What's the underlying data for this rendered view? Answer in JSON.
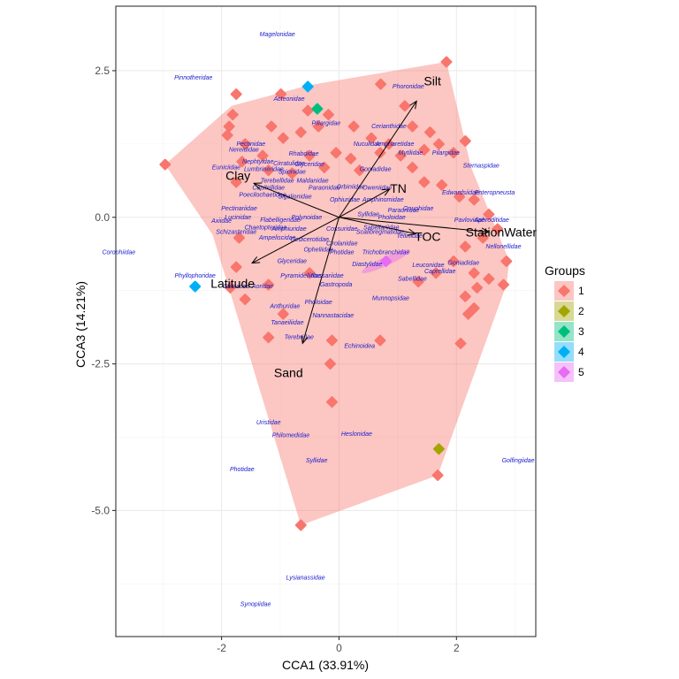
{
  "chart_data": {
    "type": "scatter",
    "xlabel": "CCA1 (33.91%)",
    "ylabel": "CCA3 (14.21%)",
    "xlim": [
      -3.8,
      3.35
    ],
    "ylim": [
      -7.15,
      3.6
    ],
    "x_ticks": [
      -2,
      0,
      2
    ],
    "x_tick_labels": [
      "-2",
      "0",
      "2"
    ],
    "y_ticks": [
      2.5,
      0,
      -2.5,
      -5
    ],
    "y_tick_labels": [
      "2.5",
      "0.0",
      "-2.5",
      "-5.0"
    ],
    "grid": true,
    "legend": {
      "title": "Groups",
      "position": "right",
      "entries": [
        {
          "label": "1",
          "color": "#F8766D"
        },
        {
          "label": "2",
          "color": "#A3A500"
        },
        {
          "label": "3",
          "color": "#00BF7D"
        },
        {
          "label": "4",
          "color": "#00B0F6"
        },
        {
          "label": "5",
          "color": "#E76BF3"
        }
      ]
    },
    "hull": {
      "group": "1",
      "color": "#F8766D",
      "points": [
        [
          1.83,
          2.65
        ],
        [
          2.25,
          0.85
        ],
        [
          2.9,
          -0.75
        ],
        [
          2.85,
          -1.15
        ],
        [
          1.68,
          -4.4
        ],
        [
          -0.65,
          -5.25
        ],
        [
          -2.15,
          -0.3
        ],
        [
          -2.96,
          0.9
        ],
        [
          -1.83,
          1.9
        ],
        [
          -0.52,
          2.25
        ]
      ]
    },
    "sites": [
      {
        "group": "1",
        "x": 1.83,
        "y": 2.65
      },
      {
        "group": "1",
        "x": 0.71,
        "y": 2.27
      },
      {
        "group": "1",
        "x": -0.53,
        "y": 1.82
      },
      {
        "group": "1",
        "x": -1.75,
        "y": 2.1
      },
      {
        "group": "1",
        "x": -0.99,
        "y": 2.1
      },
      {
        "group": "1",
        "x": -1.81,
        "y": 1.75
      },
      {
        "group": "1",
        "x": -1.87,
        "y": 1.55
      },
      {
        "group": "1",
        "x": -1.9,
        "y": 1.4
      },
      {
        "group": "1",
        "x": -2.96,
        "y": 0.9
      },
      {
        "group": "1",
        "x": -1.6,
        "y": 1.25
      },
      {
        "group": "1",
        "x": -1.15,
        "y": 1.55
      },
      {
        "group": "1",
        "x": -0.95,
        "y": 1.35
      },
      {
        "group": "1",
        "x": -0.65,
        "y": 1.45
      },
      {
        "group": "1",
        "x": -0.35,
        "y": 1.55
      },
      {
        "group": "1",
        "x": -0.18,
        "y": 1.75
      },
      {
        "group": "1",
        "x": 0.25,
        "y": 1.55
      },
      {
        "group": "1",
        "x": 0.55,
        "y": 1.35
      },
      {
        "group": "1",
        "x": 0.85,
        "y": 1.25
      },
      {
        "group": "1",
        "x": 0.7,
        "y": 1.1
      },
      {
        "group": "1",
        "x": 1.12,
        "y": 1.9
      },
      {
        "group": "1",
        "x": 1.25,
        "y": 1.55
      },
      {
        "group": "1",
        "x": 1.55,
        "y": 1.45
      },
      {
        "group": "1",
        "x": 1.7,
        "y": 1.25
      },
      {
        "group": "1",
        "x": 1.95,
        "y": 1.1
      },
      {
        "group": "1",
        "x": 2.15,
        "y": 1.3
      },
      {
        "group": "1",
        "x": 1.45,
        "y": 1.15
      },
      {
        "group": "1",
        "x": 1.05,
        "y": 1.05
      },
      {
        "group": "1",
        "x": 0.2,
        "y": 1.0
      },
      {
        "group": "1",
        "x": -0.05,
        "y": 1.1
      },
      {
        "group": "1",
        "x": -0.5,
        "y": 1.05
      },
      {
        "group": "1",
        "x": -1.3,
        "y": 1.05
      },
      {
        "group": "1",
        "x": -1.65,
        "y": 0.95
      },
      {
        "group": "1",
        "x": -1.75,
        "y": 0.6
      },
      {
        "group": "1",
        "x": -1.2,
        "y": 0.8
      },
      {
        "group": "1",
        "x": -0.8,
        "y": 0.75
      },
      {
        "group": "1",
        "x": -0.25,
        "y": 0.85
      },
      {
        "group": "1",
        "x": 0.35,
        "y": 0.8
      },
      {
        "group": "1",
        "x": 1.25,
        "y": 0.85
      },
      {
        "group": "1",
        "x": 1.45,
        "y": 0.6
      },
      {
        "group": "1",
        "x": 1.75,
        "y": 0.55
      },
      {
        "group": "1",
        "x": 2.05,
        "y": 0.35
      },
      {
        "group": "1",
        "x": 2.3,
        "y": 0.3
      },
      {
        "group": "1",
        "x": 2.55,
        "y": 0.05
      },
      {
        "group": "1",
        "x": 2.7,
        "y": -0.2
      },
      {
        "group": "1",
        "x": 2.45,
        "y": -0.35
      },
      {
        "group": "1",
        "x": 2.15,
        "y": -0.5
      },
      {
        "group": "1",
        "x": 1.95,
        "y": -0.75
      },
      {
        "group": "1",
        "x": 2.3,
        "y": -0.95
      },
      {
        "group": "1",
        "x": 2.85,
        "y": -0.75
      },
      {
        "group": "1",
        "x": 2.8,
        "y": -1.15
      },
      {
        "group": "1",
        "x": 2.55,
        "y": -1.05
      },
      {
        "group": "1",
        "x": 2.35,
        "y": -1.2
      },
      {
        "group": "1",
        "x": 2.15,
        "y": -1.35
      },
      {
        "group": "1",
        "x": 2.3,
        "y": -1.55
      },
      {
        "group": "1",
        "x": 2.2,
        "y": -1.65
      },
      {
        "group": "1",
        "x": 1.65,
        "y": -0.95
      },
      {
        "group": "1",
        "x": 1.35,
        "y": -1.1
      },
      {
        "group": "1",
        "x": 2.07,
        "y": -2.15
      },
      {
        "group": "1",
        "x": -1.7,
        "y": -0.35
      },
      {
        "group": "1",
        "x": -1.75,
        "y": -0.85
      },
      {
        "group": "1",
        "x": -1.85,
        "y": -1.2
      },
      {
        "group": "1",
        "x": -1.6,
        "y": -1.4
      },
      {
        "group": "1",
        "x": -1.2,
        "y": -1.15
      },
      {
        "group": "1",
        "x": -0.95,
        "y": -1.65
      },
      {
        "group": "1",
        "x": -1.2,
        "y": -2.05
      },
      {
        "group": "1",
        "x": -0.5,
        "y": -0.95
      },
      {
        "group": "1",
        "x": 0.7,
        "y": -2.1
      },
      {
        "group": "1",
        "x": -0.15,
        "y": -2.5
      },
      {
        "group": "1",
        "x": -0.12,
        "y": -2.1
      },
      {
        "group": "1",
        "x": -0.12,
        "y": -3.15
      },
      {
        "group": "1",
        "x": -0.65,
        "y": -5.25
      },
      {
        "group": "1",
        "x": 1.68,
        "y": -4.4
      }
    ],
    "special_sites": [
      {
        "group": "2",
        "x": 1.7,
        "y": -3.95
      },
      {
        "group": "3",
        "x": -0.37,
        "y": 1.85
      },
      {
        "group": "4",
        "x": -0.53,
        "y": 2.23
      },
      {
        "group": "4",
        "x": -2.45,
        "y": -1.18
      },
      {
        "group": "5",
        "x": 0.8,
        "y": -0.75
      }
    ],
    "env_vectors": [
      {
        "label": "Silt",
        "x": 1.32,
        "y": 1.98
      },
      {
        "label": "Clay",
        "x": -1.45,
        "y": 0.58
      },
      {
        "label": "TN",
        "x": 0.86,
        "y": 0.48
      },
      {
        "label": "TOC",
        "x": 1.3,
        "y": -0.28
      },
      {
        "label": "StationWater",
        "x": 2.55,
        "y": -0.25
      },
      {
        "label": "Latitude",
        "x": -1.48,
        "y": -0.78
      },
      {
        "label": "Sand",
        "x": -0.62,
        "y": -2.15
      }
    ],
    "taxa": [
      {
        "label": "Magelonidae",
        "x": -1.05,
        "y": 3.12
      },
      {
        "label": "Pinnotheridae",
        "x": -2.48,
        "y": 2.38
      },
      {
        "label": "Acteonidae",
        "x": -0.85,
        "y": 2.02
      },
      {
        "label": "Phoronidae",
        "x": 1.18,
        "y": 2.23
      },
      {
        "label": "Piliargidae",
        "x": -0.22,
        "y": 1.6
      },
      {
        "label": "Cerianthidae",
        "x": 0.85,
        "y": 1.55
      },
      {
        "label": "Pectinidae",
        "x": -1.5,
        "y": 1.25
      },
      {
        "label": "Nereididae",
        "x": -1.62,
        "y": 1.15
      },
      {
        "label": "Nuculidae",
        "x": 0.48,
        "y": 1.25
      },
      {
        "label": "Ampharetidae",
        "x": 0.95,
        "y": 1.25
      },
      {
        "label": "Mytilidae",
        "x": 1.22,
        "y": 1.1
      },
      {
        "label": "Pilargidae",
        "x": 1.82,
        "y": 1.1
      },
      {
        "label": "Rhabdidae",
        "x": -0.6,
        "y": 1.08
      },
      {
        "label": "Nephtyidae",
        "x": -1.38,
        "y": 0.95
      },
      {
        "label": "Cirratulidae",
        "x": -0.85,
        "y": 0.92
      },
      {
        "label": "Glyceridae",
        "x": -0.5,
        "y": 0.9
      },
      {
        "label": "Sternaspidae",
        "x": 2.42,
        "y": 0.88
      },
      {
        "label": "Euniciidae",
        "x": -1.92,
        "y": 0.85
      },
      {
        "label": "Lumbrineridae",
        "x": -1.28,
        "y": 0.82
      },
      {
        "label": "Spionidae",
        "x": -0.8,
        "y": 0.77
      },
      {
        "label": "Goniadidae",
        "x": 0.62,
        "y": 0.82
      },
      {
        "label": "Terebellidae",
        "x": -1.05,
        "y": 0.62
      },
      {
        "label": "Maldanidae",
        "x": -0.45,
        "y": 0.62
      },
      {
        "label": "Capitellidae",
        "x": -1.2,
        "y": 0.5
      },
      {
        "label": "Paraonidae",
        "x": -0.25,
        "y": 0.5
      },
      {
        "label": "Orbiniidae",
        "x": 0.2,
        "y": 0.52
      },
      {
        "label": "Oweniidae",
        "x": 0.65,
        "y": 0.5
      },
      {
        "label": "Edwardsiidae",
        "x": 2.07,
        "y": 0.42
      },
      {
        "label": "Enteropneusta",
        "x": 2.65,
        "y": 0.42
      },
      {
        "label": "Poecilochaetidae",
        "x": -1.3,
        "y": 0.38
      },
      {
        "label": "Sigalionidae",
        "x": -0.75,
        "y": 0.35
      },
      {
        "label": "Ophiuridae",
        "x": 0.1,
        "y": 0.3
      },
      {
        "label": "Amphinomidae",
        "x": 0.75,
        "y": 0.3
      },
      {
        "label": "Pectinariidae",
        "x": -1.7,
        "y": 0.15
      },
      {
        "label": "Paraonidae",
        "x": 1.1,
        "y": 0.12
      },
      {
        "label": "Onuphidae",
        "x": 1.35,
        "y": 0.15
      },
      {
        "label": "Lucinidae",
        "x": -1.72,
        "y": 0.0
      },
      {
        "label": "Axiidae",
        "x": -2.0,
        "y": -0.06
      },
      {
        "label": "Flabelligeridae",
        "x": -1.0,
        "y": -0.05
      },
      {
        "label": "Polynoidae",
        "x": -0.55,
        "y": 0.0
      },
      {
        "label": "Syllidae",
        "x": 0.5,
        "y": 0.05
      },
      {
        "label": "Pholoidae",
        "x": 0.9,
        "y": 0.0
      },
      {
        "label": "Pavlovidae",
        "x": 2.22,
        "y": -0.05
      },
      {
        "label": "Aphroditidae",
        "x": 2.6,
        "y": -0.05
      },
      {
        "label": "Schizasteridae",
        "x": -1.75,
        "y": -0.25
      },
      {
        "label": "Chaetopteridae",
        "x": -1.25,
        "y": -0.18
      },
      {
        "label": "Amphiuridae",
        "x": -0.85,
        "y": -0.2
      },
      {
        "label": "Cossuridae",
        "x": 0.05,
        "y": -0.2
      },
      {
        "label": "Sabellariidae",
        "x": 0.72,
        "y": -0.18
      },
      {
        "label": "Tellinidae",
        "x": 1.2,
        "y": -0.32
      },
      {
        "label": "Ampeliscidae",
        "x": -1.05,
        "y": -0.35
      },
      {
        "label": "Oedicerotidae",
        "x": -0.5,
        "y": -0.38
      },
      {
        "label": "Cirolanidae",
        "x": 0.05,
        "y": -0.45
      },
      {
        "label": "Scalibregmatidae",
        "x": 0.7,
        "y": -0.25
      },
      {
        "label": "Opheliidae",
        "x": -0.35,
        "y": -0.55
      },
      {
        "label": "Nellonellidae",
        "x": 2.8,
        "y": -0.5
      },
      {
        "label": "Photidae",
        "x": 0.05,
        "y": -0.6
      },
      {
        "label": "Trichobranchidae",
        "x": 0.8,
        "y": -0.6
      },
      {
        "label": "Corophiidae",
        "x": -3.75,
        "y": -0.6
      },
      {
        "label": "Glyceridae",
        "x": -0.8,
        "y": -0.75
      },
      {
        "label": "Diastylidae",
        "x": 0.48,
        "y": -0.8
      },
      {
        "label": "Leuconidae",
        "x": 1.52,
        "y": -0.82
      },
      {
        "label": "Caprellidae",
        "x": 1.72,
        "y": -0.92
      },
      {
        "label": "Goniadidae",
        "x": 2.12,
        "y": -0.78
      },
      {
        "label": "Phyllophoridae",
        "x": -2.45,
        "y": -1.0
      },
      {
        "label": "Pyramidellidae",
        "x": -0.65,
        "y": -1.0
      },
      {
        "label": "Nassariidae",
        "x": -0.2,
        "y": -1.0
      },
      {
        "label": "Sabellidae",
        "x": 1.25,
        "y": -1.05
      },
      {
        "label": "Cumacea",
        "x": -1.75,
        "y": -1.18
      },
      {
        "label": "Aoridae",
        "x": -1.3,
        "y": -1.18
      },
      {
        "label": "Gastropoda",
        "x": -0.05,
        "y": -1.15
      },
      {
        "label": "Munnopsidae",
        "x": 0.88,
        "y": -1.38
      },
      {
        "label": "Pholoidae",
        "x": -0.35,
        "y": -1.45
      },
      {
        "label": "Anthuridae",
        "x": -0.92,
        "y": -1.52
      },
      {
        "label": "Nannastacidae",
        "x": -0.1,
        "y": -1.68
      },
      {
        "label": "Tanaeiliidae",
        "x": -0.88,
        "y": -1.8
      },
      {
        "label": "Terebridae",
        "x": -0.68,
        "y": -2.05
      },
      {
        "label": "Echinoidea",
        "x": 0.35,
        "y": -2.2
      },
      {
        "label": "Uristidae",
        "x": -1.2,
        "y": -3.5
      },
      {
        "label": "Heslonidae",
        "x": 0.3,
        "y": -3.7
      },
      {
        "label": "Philomedidae",
        "x": -0.82,
        "y": -3.72
      },
      {
        "label": "Syllidae",
        "x": -0.38,
        "y": -4.15
      },
      {
        "label": "Golfingiidae",
        "x": 3.05,
        "y": -4.15
      },
      {
        "label": "Photidae",
        "x": -1.65,
        "y": -4.3
      },
      {
        "label": "Lysianassidae",
        "x": -0.57,
        "y": -6.15
      },
      {
        "label": "Synopiidae",
        "x": -1.42,
        "y": -6.6
      }
    ]
  }
}
